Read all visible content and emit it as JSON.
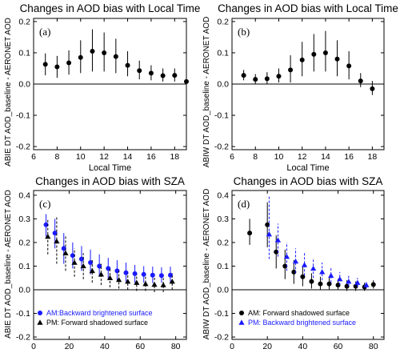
{
  "figure": {
    "ylabels": {
      "top_left": "ABIE DT AOD_baseline - AERONET AOD",
      "top_right": "ABIW DT AOD_baseline - AERONET AOD",
      "bottom_left": "ABIE DT AOD_baseline - AERONET AOD",
      "bottom_right": "ABIW DT AOD_baseline - AERONET AOD"
    }
  },
  "chart_data": [
    {
      "id": "a",
      "type": "scatter",
      "title": "Changes in AOD bias with Local Time",
      "panel_label": "(a)",
      "xlabel": "Local Time",
      "ylabel": "ABIE DT AOD_baseline - AERONET AOD",
      "xlim": [
        6,
        19
      ],
      "ylim": [
        -0.21,
        0.21
      ],
      "xticks": [
        6,
        8,
        10,
        12,
        14,
        16,
        18
      ],
      "yticks": [
        -0.2,
        -0.1,
        0.0,
        0.1,
        0.2
      ],
      "zero_line": true,
      "series": [
        {
          "color": "#000000",
          "marker": "circle",
          "error_style": "solid",
          "points": [
            {
              "x": 7,
              "y": 0.063,
              "lo": 0.028,
              "hi": 0.098
            },
            {
              "x": 8,
              "y": 0.055,
              "lo": 0.02,
              "hi": 0.09
            },
            {
              "x": 9,
              "y": 0.068,
              "lo": 0.03,
              "hi": 0.108
            },
            {
              "x": 10,
              "y": 0.085,
              "lo": 0.035,
              "hi": 0.14
            },
            {
              "x": 11,
              "y": 0.105,
              "lo": 0.04,
              "hi": 0.175
            },
            {
              "x": 12,
              "y": 0.1,
              "lo": 0.04,
              "hi": 0.165
            },
            {
              "x": 13,
              "y": 0.088,
              "lo": 0.035,
              "hi": 0.145
            },
            {
              "x": 14,
              "y": 0.06,
              "lo": 0.025,
              "hi": 0.105
            },
            {
              "x": 15,
              "y": 0.043,
              "lo": 0.015,
              "hi": 0.075
            },
            {
              "x": 16,
              "y": 0.035,
              "lo": 0.012,
              "hi": 0.06
            },
            {
              "x": 17,
              "y": 0.027,
              "lo": 0.008,
              "hi": 0.05
            },
            {
              "x": 18,
              "y": 0.028,
              "lo": 0.008,
              "hi": 0.05
            },
            {
              "x": 19,
              "y": 0.008,
              "lo": -0.005,
              "hi": 0.022
            }
          ]
        }
      ]
    },
    {
      "id": "b",
      "type": "scatter",
      "title": "Changes in AOD bias with Local Time",
      "panel_label": "(b)",
      "xlabel": "Local Time",
      "ylabel": "ABIW DT AOD_baseline - AERONET AOD",
      "xlim": [
        6,
        19
      ],
      "ylim": [
        -0.21,
        0.21
      ],
      "xticks": [
        6,
        8,
        10,
        12,
        14,
        16,
        18
      ],
      "yticks": [
        -0.2,
        -0.1,
        0.0,
        0.1,
        0.2
      ],
      "zero_line": true,
      "series": [
        {
          "color": "#000000",
          "marker": "circle",
          "error_style": "solid",
          "points": [
            {
              "x": 7,
              "y": 0.028,
              "lo": 0.012,
              "hi": 0.045
            },
            {
              "x": 8,
              "y": 0.015,
              "lo": 0.0,
              "hi": 0.032
            },
            {
              "x": 9,
              "y": 0.017,
              "lo": 0.0,
              "hi": 0.038
            },
            {
              "x": 10,
              "y": 0.025,
              "lo": 0.005,
              "hi": 0.05
            },
            {
              "x": 11,
              "y": 0.045,
              "lo": 0.005,
              "hi": 0.092
            },
            {
              "x": 12,
              "y": 0.077,
              "lo": 0.025,
              "hi": 0.135
            },
            {
              "x": 13,
              "y": 0.095,
              "lo": 0.04,
              "hi": 0.16
            },
            {
              "x": 14,
              "y": 0.1,
              "lo": 0.04,
              "hi": 0.17
            },
            {
              "x": 15,
              "y": 0.08,
              "lo": 0.025,
              "hi": 0.14
            },
            {
              "x": 16,
              "y": 0.058,
              "lo": 0.015,
              "hi": 0.105
            },
            {
              "x": 17,
              "y": 0.01,
              "lo": -0.01,
              "hi": 0.035
            },
            {
              "x": 18,
              "y": -0.015,
              "lo": -0.035,
              "hi": 0.01
            }
          ]
        }
      ]
    },
    {
      "id": "c",
      "type": "scatter",
      "title": "Changes in AOD bias with SZA",
      "panel_label": "(c)",
      "xlabel": "SZA",
      "ylabel": "ABIE DT AOD_baseline - AERONET AOD",
      "xlim": [
        0,
        86
      ],
      "ylim": [
        -0.21,
        0.42
      ],
      "xticks": [
        0,
        20,
        40,
        60,
        80
      ],
      "yticks": [
        -0.2,
        -0.1,
        0.0,
        0.1,
        0.2,
        0.3,
        0.4
      ],
      "zero_line": true,
      "legend": {
        "position": "bottom-left"
      },
      "series": [
        {
          "name": "AM:Backward brightened surface",
          "color": "#1a1aff",
          "marker": "circle",
          "error_style": "solid",
          "points": [
            {
              "x": 7,
              "y": 0.275,
              "lo": 0.225,
              "hi": 0.32
            },
            {
              "x": 12,
              "y": 0.24,
              "lo": 0.175,
              "hi": 0.3
            },
            {
              "x": 17,
              "y": 0.175,
              "lo": 0.11,
              "hi": 0.24
            },
            {
              "x": 22,
              "y": 0.145,
              "lo": 0.09,
              "hi": 0.2
            },
            {
              "x": 27,
              "y": 0.13,
              "lo": 0.08,
              "hi": 0.185
            },
            {
              "x": 32,
              "y": 0.115,
              "lo": 0.065,
              "hi": 0.17
            },
            {
              "x": 37,
              "y": 0.1,
              "lo": 0.055,
              "hi": 0.15
            },
            {
              "x": 42,
              "y": 0.09,
              "lo": 0.045,
              "hi": 0.135
            },
            {
              "x": 47,
              "y": 0.08,
              "lo": 0.04,
              "hi": 0.125
            },
            {
              "x": 52,
              "y": 0.072,
              "lo": 0.035,
              "hi": 0.115
            },
            {
              "x": 57,
              "y": 0.068,
              "lo": 0.03,
              "hi": 0.105
            },
            {
              "x": 62,
              "y": 0.065,
              "lo": 0.03,
              "hi": 0.1
            },
            {
              "x": 67,
              "y": 0.062,
              "lo": 0.028,
              "hi": 0.098
            },
            {
              "x": 72,
              "y": 0.06,
              "lo": 0.03,
              "hi": 0.095
            },
            {
              "x": 77,
              "y": 0.062,
              "lo": 0.032,
              "hi": 0.098
            }
          ]
        },
        {
          "name": "PM: Forward shadowed surface",
          "color": "#000000",
          "marker": "triangle",
          "error_style": "dashed",
          "points": [
            {
              "x": 8,
              "y": 0.225,
              "lo": 0.15,
              "hi": 0.3
            },
            {
              "x": 13,
              "y": 0.205,
              "lo": 0.11,
              "hi": 0.31
            },
            {
              "x": 18,
              "y": 0.155,
              "lo": 0.08,
              "hi": 0.23
            },
            {
              "x": 23,
              "y": 0.115,
              "lo": 0.055,
              "hi": 0.175
            },
            {
              "x": 28,
              "y": 0.1,
              "lo": 0.045,
              "hi": 0.155
            },
            {
              "x": 33,
              "y": 0.08,
              "lo": 0.03,
              "hi": 0.13
            },
            {
              "x": 38,
              "y": 0.065,
              "lo": 0.02,
              "hi": 0.11
            },
            {
              "x": 43,
              "y": 0.05,
              "lo": 0.01,
              "hi": 0.09
            },
            {
              "x": 48,
              "y": 0.042,
              "lo": 0.005,
              "hi": 0.08
            },
            {
              "x": 53,
              "y": 0.035,
              "lo": 0.0,
              "hi": 0.07
            },
            {
              "x": 58,
              "y": 0.03,
              "lo": -0.005,
              "hi": 0.065
            },
            {
              "x": 63,
              "y": 0.025,
              "lo": -0.005,
              "hi": 0.055
            },
            {
              "x": 68,
              "y": 0.022,
              "lo": -0.01,
              "hi": 0.055
            },
            {
              "x": 73,
              "y": 0.02,
              "lo": -0.01,
              "hi": 0.05
            },
            {
              "x": 78,
              "y": 0.035,
              "lo": 0.0,
              "hi": 0.07
            }
          ]
        }
      ]
    },
    {
      "id": "d",
      "type": "scatter",
      "title": "Changes in AOD bias with SZA",
      "panel_label": "(d)",
      "xlabel": "SZA",
      "ylabel": "ABIW DT AOD_baseline - AERONET AOD",
      "xlim": [
        0,
        86
      ],
      "ylim": [
        -0.21,
        0.42
      ],
      "xticks": [
        0,
        20,
        40,
        60,
        80
      ],
      "yticks": [
        -0.2,
        -0.1,
        0.0,
        0.1,
        0.2,
        0.3,
        0.4
      ],
      "zero_line": true,
      "legend": {
        "position": "bottom-center"
      },
      "series": [
        {
          "name": "AM: Forward shadowed surface",
          "color": "#000000",
          "marker": "circle",
          "error_style": "solid",
          "points": [
            {
              "x": 10,
              "y": 0.24,
              "lo": 0.19,
              "hi": 0.3
            },
            {
              "x": 20,
              "y": 0.275,
              "lo": 0.18,
              "hi": 0.37
            },
            {
              "x": 25,
              "y": 0.16,
              "lo": 0.09,
              "hi": 0.23
            },
            {
              "x": 30,
              "y": 0.1,
              "lo": 0.045,
              "hi": 0.17
            },
            {
              "x": 35,
              "y": 0.075,
              "lo": 0.025,
              "hi": 0.125
            },
            {
              "x": 40,
              "y": 0.055,
              "lo": 0.015,
              "hi": 0.1
            },
            {
              "x": 45,
              "y": 0.035,
              "lo": 0.005,
              "hi": 0.07
            },
            {
              "x": 50,
              "y": 0.025,
              "lo": 0.0,
              "hi": 0.055
            },
            {
              "x": 55,
              "y": 0.025,
              "lo": 0.0,
              "hi": 0.055
            },
            {
              "x": 60,
              "y": 0.02,
              "lo": 0.0,
              "hi": 0.045
            },
            {
              "x": 65,
              "y": 0.015,
              "lo": -0.005,
              "hi": 0.04
            },
            {
              "x": 70,
              "y": 0.015,
              "lo": -0.005,
              "hi": 0.035
            },
            {
              "x": 75,
              "y": 0.012,
              "lo": -0.005,
              "hi": 0.03
            },
            {
              "x": 80,
              "y": 0.022,
              "lo": 0.005,
              "hi": 0.04
            }
          ]
        },
        {
          "name": "PM: Backward brightened surface",
          "color": "#1a1aff",
          "marker": "triangle",
          "error_style": "dashed",
          "points": [
            {
              "x": 21,
              "y": 0.235,
              "lo": 0.13,
              "hi": 0.4
            },
            {
              "x": 26,
              "y": 0.21,
              "lo": 0.14,
              "hi": 0.28
            },
            {
              "x": 31,
              "y": 0.14,
              "lo": 0.08,
              "hi": 0.2
            },
            {
              "x": 36,
              "y": 0.12,
              "lo": 0.07,
              "hi": 0.175
            },
            {
              "x": 41,
              "y": 0.105,
              "lo": 0.06,
              "hi": 0.155
            },
            {
              "x": 46,
              "y": 0.09,
              "lo": 0.05,
              "hi": 0.135
            },
            {
              "x": 51,
              "y": 0.075,
              "lo": 0.04,
              "hi": 0.115
            },
            {
              "x": 56,
              "y": 0.06,
              "lo": 0.03,
              "hi": 0.095
            },
            {
              "x": 61,
              "y": 0.045,
              "lo": 0.02,
              "hi": 0.075
            },
            {
              "x": 66,
              "y": 0.035,
              "lo": 0.015,
              "hi": 0.06
            },
            {
              "x": 71,
              "y": 0.03,
              "lo": 0.01,
              "hi": 0.05
            },
            {
              "x": 76,
              "y": 0.02,
              "lo": 0.005,
              "hi": 0.038
            }
          ]
        }
      ]
    }
  ]
}
